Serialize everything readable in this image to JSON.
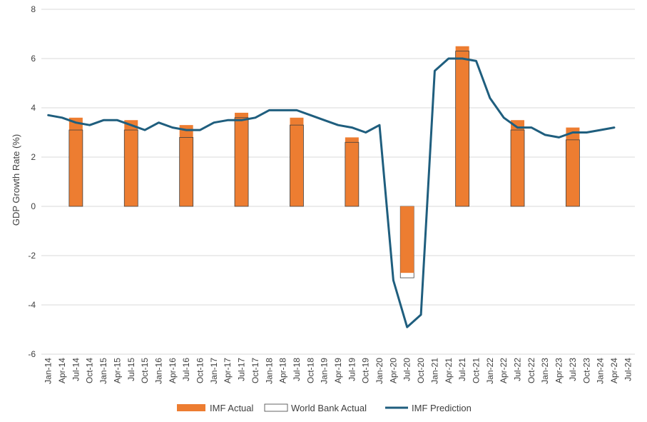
{
  "chart_data": {
    "type": "bar",
    "title": "",
    "xlabel": "",
    "ylabel": "GDP Growth Rate (%)",
    "ylim": [
      -6,
      8
    ],
    "y_ticks": [
      -6,
      -4,
      -2,
      0,
      2,
      4,
      6,
      8
    ],
    "grid": "horizontal",
    "legend_position": "bottom",
    "colors": {
      "imf_actual": "#ED7D31",
      "world_bank_actual": "#FFFFFF",
      "world_bank_border": "#404040",
      "imf_prediction": "#1F5E7E",
      "grid": "#D9D9D9"
    },
    "categories": [
      "Jan-14",
      "Apr-14",
      "Jul-14",
      "Oct-14",
      "Jan-15",
      "Apr-15",
      "Jul-15",
      "Oct-15",
      "Jan-16",
      "Apr-16",
      "Jul-16",
      "Oct-16",
      "Jan-17",
      "Apr-17",
      "Jul-17",
      "Oct-17",
      "Jan-18",
      "Apr-18",
      "Jul-18",
      "Oct-18",
      "Jan-19",
      "Apr-19",
      "Jul-19",
      "Oct-19",
      "Jan-20",
      "Apr-20",
      "Jul-20",
      "Oct-20",
      "Jan-21",
      "Apr-21",
      "Jul-21",
      "Oct-21",
      "Jan-22",
      "Apr-22",
      "Jul-22",
      "Oct-22",
      "Jan-23",
      "Apr-23",
      "Jul-23",
      "Oct-23",
      "Jan-24",
      "Apr-24",
      "Jul-24"
    ],
    "series": [
      {
        "name": "IMF Actual",
        "kind": "bar",
        "points": [
          {
            "x": "Jul-14",
            "y": 3.6
          },
          {
            "x": "Jul-15",
            "y": 3.5
          },
          {
            "x": "Jul-16",
            "y": 3.3
          },
          {
            "x": "Jul-17",
            "y": 3.8
          },
          {
            "x": "Jul-18",
            "y": 3.6
          },
          {
            "x": "Jul-19",
            "y": 2.8
          },
          {
            "x": "Jul-20",
            "y": -2.7
          },
          {
            "x": "Jul-21",
            "y": 6.5
          },
          {
            "x": "Jul-22",
            "y": 3.5
          },
          {
            "x": "Jul-23",
            "y": 3.2
          }
        ]
      },
      {
        "name": "World Bank Actual",
        "kind": "bar",
        "points": [
          {
            "x": "Jul-14",
            "y": 3.1
          },
          {
            "x": "Jul-15",
            "y": 3.1
          },
          {
            "x": "Jul-16",
            "y": 2.8
          },
          {
            "x": "Jul-17",
            "y": 3.6
          },
          {
            "x": "Jul-18",
            "y": 3.3
          },
          {
            "x": "Jul-19",
            "y": 2.6
          },
          {
            "x": "Jul-20",
            "y": -2.9
          },
          {
            "x": "Jul-21",
            "y": 6.3
          },
          {
            "x": "Jul-22",
            "y": 3.1
          },
          {
            "x": "Jul-23",
            "y": 2.7
          }
        ]
      },
      {
        "name": "IMF Prediction",
        "kind": "line",
        "values": [
          3.7,
          3.6,
          3.4,
          3.3,
          3.5,
          3.5,
          3.3,
          3.1,
          3.4,
          3.2,
          3.1,
          3.1,
          3.4,
          3.5,
          3.5,
          3.6,
          3.9,
          3.9,
          3.9,
          3.7,
          3.5,
          3.3,
          3.2,
          3.0,
          3.3,
          -3.0,
          -4.9,
          -4.4,
          5.5,
          6.0,
          6.0,
          5.9,
          4.4,
          3.6,
          3.2,
          3.2,
          2.9,
          2.8,
          3.0,
          3.0,
          3.1,
          3.2,
          null
        ]
      }
    ]
  }
}
